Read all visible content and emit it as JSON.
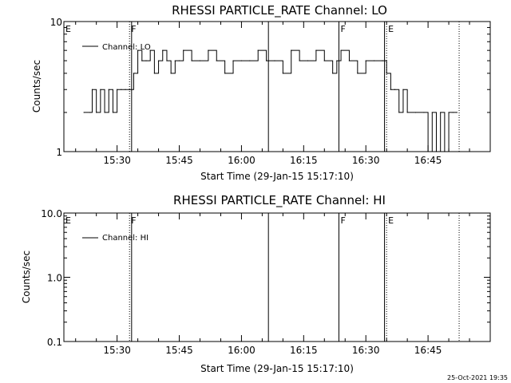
{
  "footer_stamp": "25-Oct-2021 19:35",
  "chart_data": [
    {
      "type": "line",
      "title": "RHESSI PARTICLE_RATE Channel: LO",
      "xlabel": "Start Time (29-Jan-15 15:17:10)",
      "ylabel": "Counts/sec",
      "y_log": true,
      "xlim": [
        "15:17:10",
        "17:00:00"
      ],
      "ylim": [
        1,
        10
      ],
      "x_ticks": [
        "15:30",
        "15:45",
        "16:00",
        "16:15",
        "16:30",
        "16:45"
      ],
      "y_ticks": [
        "1",
        "10"
      ],
      "legend": {
        "placement": "top-left",
        "entries": [
          "Channel: LO"
        ]
      },
      "markers": [
        {
          "label": "E",
          "time": "15:17:10",
          "style": "none"
        },
        {
          "label": "F",
          "time": "15:33:00",
          "style": "dotted"
        },
        {
          "label": "",
          "time": "15:33:30",
          "style": "solid"
        },
        {
          "label": "",
          "time": "16:06:30",
          "style": "solid"
        },
        {
          "label": "F",
          "time": "16:23:30",
          "style": "solid"
        },
        {
          "label": "",
          "time": "16:34:30",
          "style": "solid"
        },
        {
          "label": "E",
          "time": "16:35:00",
          "style": "dotted"
        },
        {
          "label": "",
          "time": "16:52:30",
          "style": "dotted"
        }
      ],
      "series": [
        {
          "color": "#000000",
          "x": [
            "15:22:00",
            "15:23:30",
            "15:24:00",
            "15:25:00",
            "15:26:00",
            "15:27:00",
            "15:28:00",
            "15:29:00",
            "15:30:00",
            "15:31:00",
            "15:32:00",
            "15:33:00",
            "15:33:30",
            "15:34:00",
            "15:35:00",
            "15:36:00",
            "15:37:00",
            "15:38:00",
            "15:39:00",
            "15:40:00",
            "15:41:00",
            "15:42:00",
            "15:43:00",
            "15:44:00",
            "15:45:00",
            "15:46:00",
            "15:48:00",
            "15:50:00",
            "15:52:00",
            "15:54:00",
            "15:56:00",
            "15:58:00",
            "16:00:00",
            "16:02:00",
            "16:04:00",
            "16:06:00",
            "16:08:00",
            "16:10:00",
            "16:12:00",
            "16:14:00",
            "16:16:00",
            "16:18:00",
            "16:20:00",
            "16:22:00",
            "16:23:00",
            "16:24:00",
            "16:26:00",
            "16:28:00",
            "16:30:00",
            "16:32:00",
            "16:34:00",
            "16:35:00",
            "16:36:00",
            "16:37:00",
            "16:38:00",
            "16:39:00",
            "16:40:00",
            "16:42:00",
            "16:44:00",
            "16:45:00",
            "16:46:00",
            "16:47:00",
            "16:48:00",
            "16:49:00",
            "16:50:00",
            "16:51:00",
            "16:52:00"
          ],
          "y": [
            2,
            2,
            3,
            2,
            3,
            2,
            3,
            2,
            3,
            3,
            3,
            3,
            3,
            4,
            6,
            5,
            5,
            6,
            4,
            5,
            6,
            5,
            4,
            5,
            5,
            6,
            5,
            5,
            6,
            5,
            4,
            5,
            5,
            5,
            6,
            5,
            5,
            4,
            6,
            5,
            5,
            6,
            5,
            4,
            5,
            6,
            5,
            4,
            5,
            5,
            5,
            4,
            3,
            3,
            2,
            3,
            2,
            2,
            2,
            1,
            2,
            1,
            2,
            1,
            2,
            2,
            2
          ]
        }
      ]
    },
    {
      "type": "line",
      "title": "RHESSI PARTICLE_RATE Channel: HI",
      "xlabel": "Start Time (29-Jan-15 15:17:10)",
      "ylabel": "Counts/sec",
      "y_log": true,
      "xlim": [
        "15:17:10",
        "17:00:00"
      ],
      "ylim": [
        0.1,
        10.0
      ],
      "x_ticks": [
        "15:30",
        "15:45",
        "16:00",
        "16:15",
        "16:30",
        "16:45"
      ],
      "y_ticks": [
        "0.1",
        "1.0",
        "10.0"
      ],
      "legend": {
        "placement": "top-left",
        "entries": [
          "Channel: HI"
        ]
      },
      "markers": [
        {
          "label": "E",
          "time": "15:17:10",
          "style": "none"
        },
        {
          "label": "F",
          "time": "15:33:00",
          "style": "dotted"
        },
        {
          "label": "",
          "time": "15:33:30",
          "style": "solid"
        },
        {
          "label": "",
          "time": "16:06:30",
          "style": "solid"
        },
        {
          "label": "F",
          "time": "16:23:30",
          "style": "solid"
        },
        {
          "label": "",
          "time": "16:34:30",
          "style": "solid"
        },
        {
          "label": "E",
          "time": "16:35:00",
          "style": "dotted"
        },
        {
          "label": "",
          "time": "16:52:30",
          "style": "dotted"
        }
      ],
      "series": []
    }
  ]
}
